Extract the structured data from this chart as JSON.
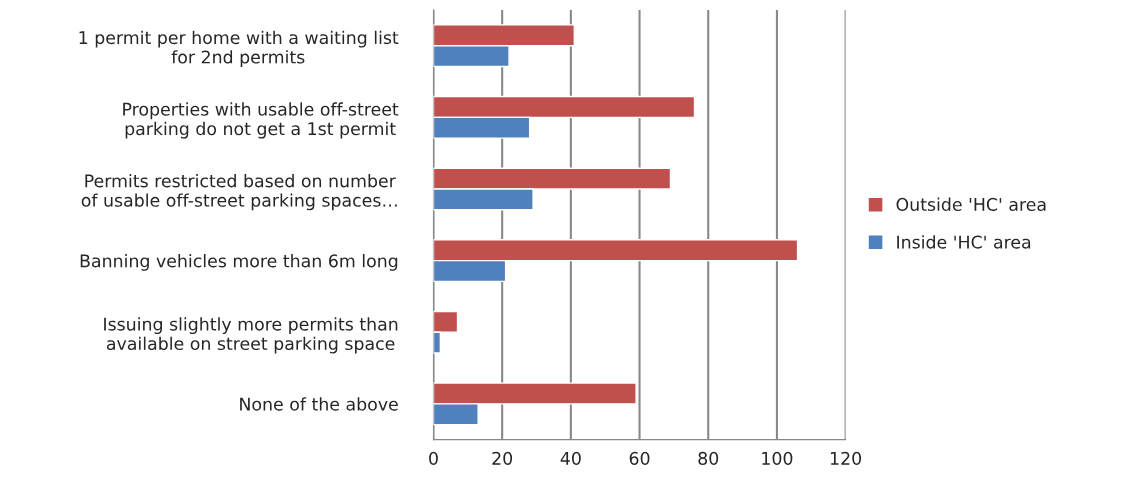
{
  "chart_data": {
    "type": "bar",
    "orientation": "horizontal",
    "categories": [
      "1 permit per home with a waiting list\nfor 2nd permits",
      "Properties with usable off-street\nparking do not get a 1st permit",
      "Permits restricted based on number\nof usable off-street parking spaces…",
      "Banning vehicles more than 6m long",
      "Issuing slightly more permits than\navailable on street parking space",
      "None of the above"
    ],
    "series": [
      {
        "name": "Outside 'HC' area",
        "color": "#c0504d",
        "values": [
          41,
          76,
          69,
          106,
          7,
          59
        ]
      },
      {
        "name": "Inside 'HC' area",
        "color": "#4f81bd",
        "values": [
          22,
          28,
          29,
          21,
          2,
          13
        ]
      }
    ],
    "xlim": [
      0,
      120
    ],
    "xticks": [
      0,
      20,
      40,
      60,
      80,
      100,
      120
    ],
    "grid": "x",
    "legend": "right"
  }
}
